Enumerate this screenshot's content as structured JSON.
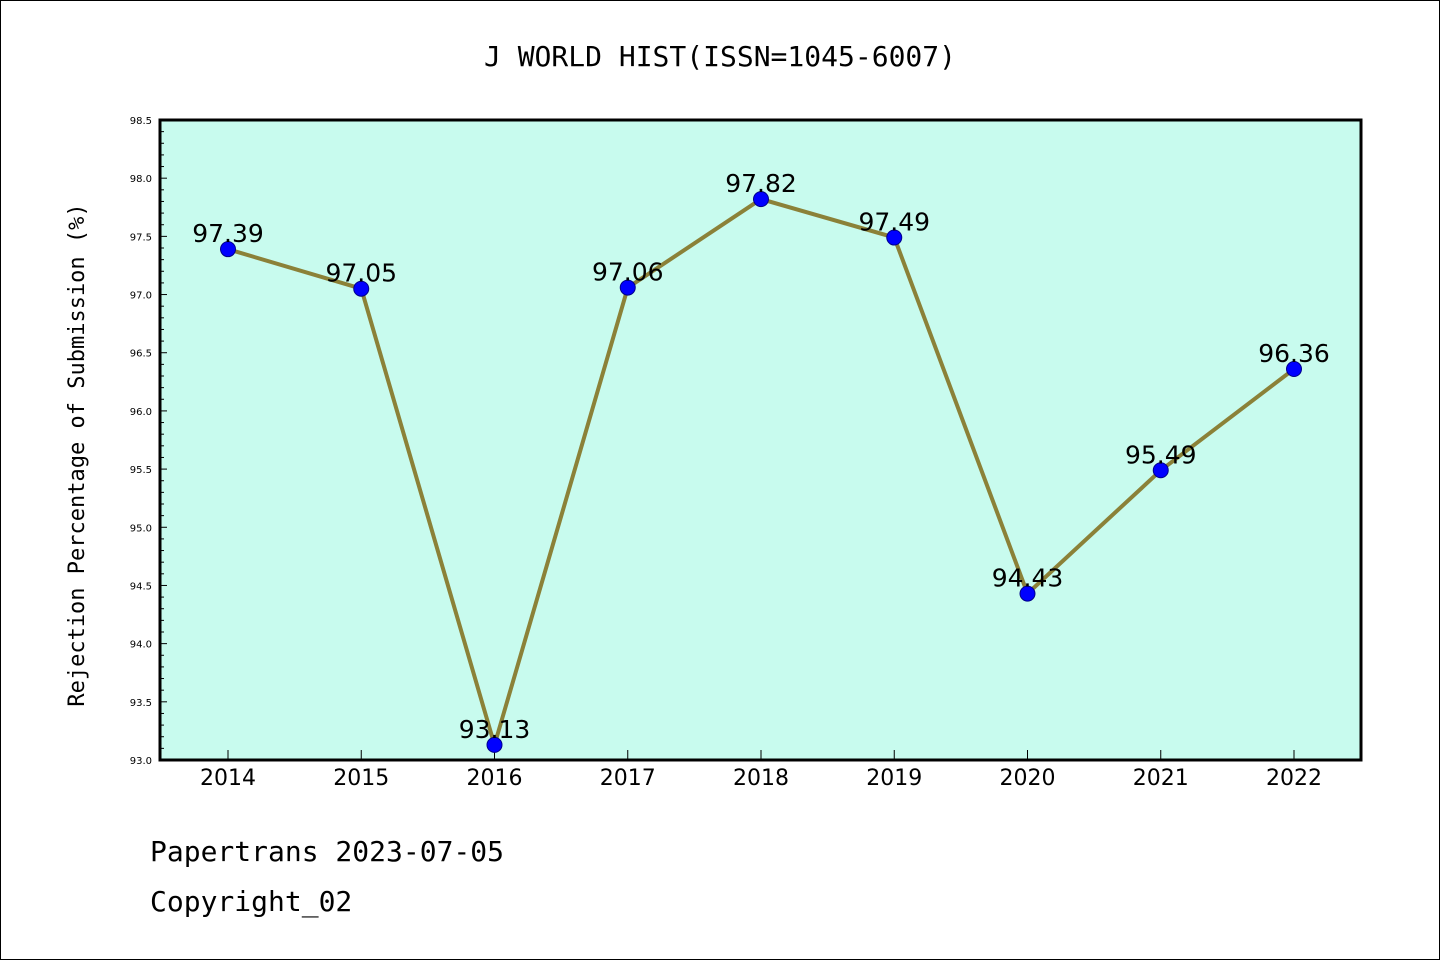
{
  "chart_data": {
    "type": "line",
    "title": "J WORLD HIST(ISSN=1045-6007)",
    "ylabel": "Rejection Percentage of Submission (%)",
    "xlabel": "",
    "categories": [
      "2014",
      "2015",
      "2016",
      "2017",
      "2018",
      "2019",
      "2020",
      "2021",
      "2022"
    ],
    "values": [
      97.39,
      97.05,
      93.13,
      97.06,
      97.82,
      97.49,
      94.43,
      95.49,
      96.36
    ],
    "data_labels": [
      "97.39",
      "97.05",
      "93.13",
      "97.06",
      "97.82",
      "97.49",
      "94.43",
      "95.49",
      "96.36"
    ],
    "ylim": [
      93.0,
      98.5
    ],
    "yticks": [
      93.0,
      93.5,
      94.0,
      94.5,
      95.0,
      95.5,
      96.0,
      96.5,
      97.0,
      97.5,
      98.0,
      98.5
    ],
    "ytick_labels": [
      "93.0",
      "93.5",
      "94.0",
      "94.5",
      "95.0",
      "95.5",
      "96.0",
      "96.5",
      "97.0",
      "97.5",
      "98.0",
      "98.5"
    ],
    "grid": false,
    "legend": "none",
    "colors": {
      "plot_background": "#c8fbee",
      "line": "#8b8138",
      "marker": "#0000ff",
      "axes": "#000000"
    }
  },
  "footer": {
    "line1": "Papertrans 2023-07-05",
    "line2": "Copyright_02"
  }
}
